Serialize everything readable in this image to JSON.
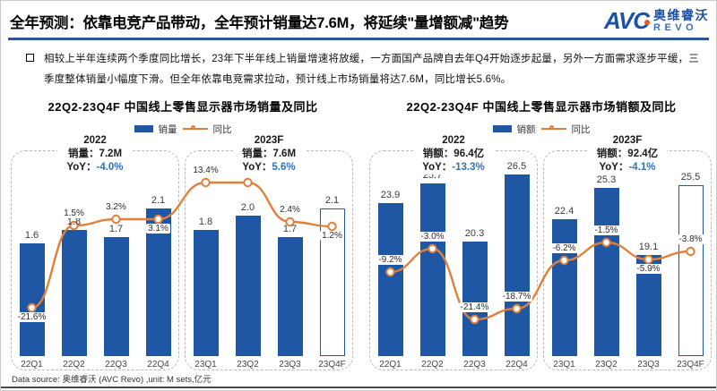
{
  "header": {
    "title": "全年预测：依靠电竞产品带动，全年预计销量达7.6M，将延续\"量增额减\"趋势",
    "logo": {
      "avc": "AVC",
      "cn": "奥维睿沃",
      "en": "REVO"
    }
  },
  "bullet": {
    "text": "相较上半年连续两个季度同比增长，23年下半年线上销量增速将放缓，一方面国产品牌自去年Q4开始逐步起量，另外一方面需求逐步平缓，三季度整体销量小幅度下滑。但全年依靠电竞需求拉动，预计线上市场销量将达7.6M，同比增长5.6%。"
  },
  "footer": {
    "text": "Data source: 奥维睿沃 (AVC Revo) ,unit: M sets,亿元"
  },
  "colors": {
    "bar_blue": "#2057A5",
    "line_orange": "#E0803C",
    "yoy_blue": "#2E74B5",
    "header_rule": "#2F5496"
  },
  "chart_data": [
    {
      "type": "bar+line",
      "title": "22Q2-23Q4F 中国线上零售显示器市场销量及同比",
      "unit": "M sets",
      "legend": {
        "bar": "销量",
        "line": "同比"
      },
      "categories": [
        "22Q1",
        "22Q2",
        "22Q3",
        "22Q4",
        "23Q1",
        "23Q2",
        "23Q3",
        "23Q4F"
      ],
      "series": [
        {
          "name": "销量",
          "type": "bar",
          "values": [
            1.6,
            1.8,
            1.7,
            2.1,
            1.8,
            2.0,
            1.7,
            2.1
          ]
        },
        {
          "name": "同比",
          "type": "line",
          "values": [
            -21.6,
            1.5,
            3.2,
            3.1,
            13.4,
            13.3,
            2.4,
            1.2
          ],
          "labels": [
            "-21.6%",
            "1.5%",
            "3.2%",
            "3.1%",
            "13.4%",
            "13.3%",
            "2.4%",
            "1.2%"
          ],
          "label_side": [
            "below",
            "above",
            "above",
            "below",
            "above",
            "above",
            "above",
            "below"
          ]
        }
      ],
      "forecast_index": 7,
      "groups": [
        {
          "label": "2022",
          "metric": "销量：7.2M",
          "yoy_label": "YoY：",
          "yoy": "-4.0%"
        },
        {
          "label": "2023F",
          "metric": "销量：7.6M",
          "yoy_label": "YoY：",
          "yoy": "5.6%"
        }
      ]
    },
    {
      "type": "bar+line",
      "title": "22Q2-23Q4F 中国线上零售显示器市场销额及同比",
      "unit": "亿元",
      "legend": {
        "bar": "销额",
        "line": "同比"
      },
      "categories": [
        "22Q1",
        "22Q2",
        "22Q3",
        "22Q4",
        "23Q1",
        "23Q2",
        "23Q3",
        "23Q4F"
      ],
      "series": [
        {
          "name": "销额",
          "type": "bar",
          "values": [
            23.9,
            25.7,
            20.3,
            26.5,
            22.4,
            25.3,
            19.1,
            25.5
          ]
        },
        {
          "name": "同比",
          "type": "line",
          "values": [
            -9.2,
            -3.0,
            -21.4,
            -18.7,
            -6.2,
            -1.5,
            -5.9,
            -3.8
          ],
          "labels": [
            "-9.2%",
            "-3.0%",
            "-21.4%",
            "-18.7%",
            "-6.2%",
            "-1.5%",
            "-5.9%",
            "-3.8%"
          ],
          "label_side": [
            "above",
            "above",
            "above",
            "above",
            "above",
            "above",
            "below",
            "above"
          ]
        }
      ],
      "forecast_index": 7,
      "groups": [
        {
          "label": "2022",
          "metric": "销额：96.4亿",
          "yoy_label": "YoY：",
          "yoy": "-13.3%"
        },
        {
          "label": "2023F",
          "metric": "销额：92.4亿",
          "yoy_label": "YoY：",
          "yoy": "-4.1%"
        }
      ]
    }
  ]
}
